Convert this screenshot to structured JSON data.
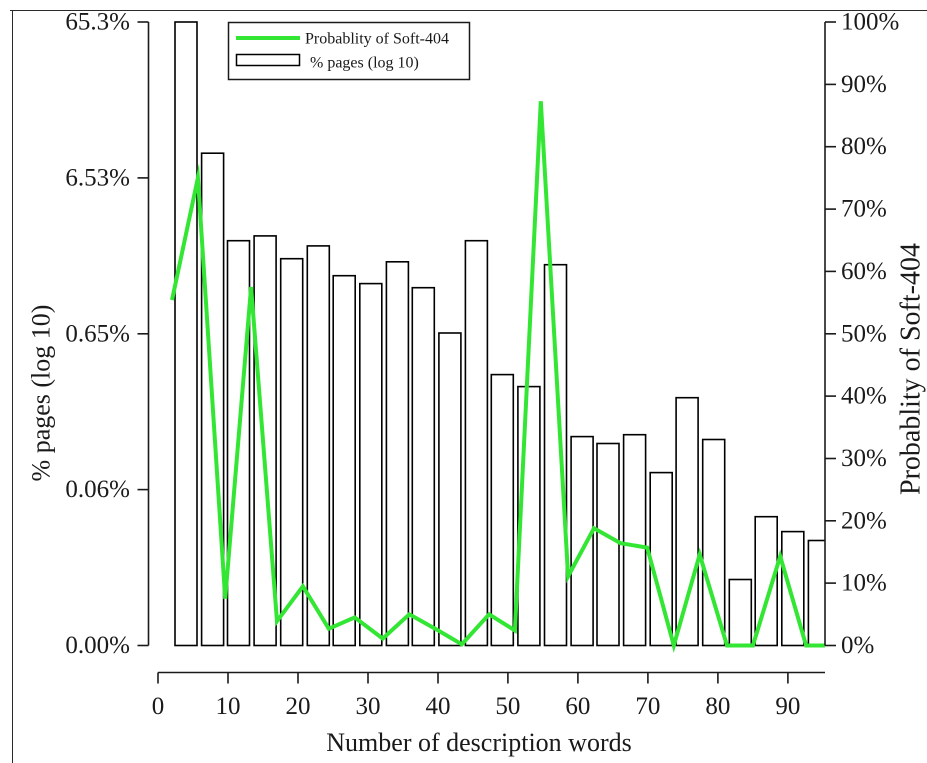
{
  "chart_data": {
    "type": "bar",
    "title": "",
    "xlabel": "Number of description words",
    "ylabel": "% pages (log 10)",
    "y2label": "Probablity of Soft-404",
    "xlim": [
      0,
      95.3
    ],
    "xticks": [
      0,
      10,
      20,
      30,
      40,
      50,
      60,
      70,
      80,
      90
    ],
    "xtick_labels": [
      "0",
      "10",
      "20",
      "30",
      "40",
      "50",
      "60",
      "70",
      "80",
      "90"
    ],
    "yscale": "log",
    "ylim": [
      0.00653,
      65.3
    ],
    "yticks": [
      0.00653,
      0.0653,
      0.653,
      6.53,
      65.3
    ],
    "ytick_labels": [
      "0.00%",
      "0.06%",
      "0.65%",
      "6.53%",
      "65.3%"
    ],
    "y2scale": "linear",
    "y2lim": [
      0,
      100
    ],
    "y2ticks": [
      0,
      10,
      20,
      30,
      40,
      50,
      60,
      70,
      80,
      90,
      100
    ],
    "y2tick_labels": [
      "0%",
      "10%",
      "20%",
      "30%",
      "40%",
      "50%",
      "60%",
      "70%",
      "80%",
      "90%",
      "100%"
    ],
    "grid": false,
    "legend_position": "top-left",
    "series": [
      {
        "name": "Probablity of Soft-404",
        "type": "line",
        "axis": "right",
        "color": "#33e633",
        "x": [
          2.0,
          5.7,
          9.6,
          13.3,
          17.0,
          20.7,
          24.4,
          28.1,
          32.1,
          35.9,
          39.6,
          43.4,
          47.3,
          51.0,
          54.7,
          58.6,
          62.3,
          66.1,
          69.9,
          73.7,
          77.4,
          81.3,
          85.0,
          88.9,
          92.6,
          95.3
        ],
        "y": [
          55.4,
          75.0,
          7.5,
          57.5,
          3.9,
          9.5,
          2.7,
          4.5,
          1.1,
          5.0,
          2.7,
          0.2,
          5.0,
          2.4,
          87.3,
          11.1,
          18.8,
          16.4,
          15.7,
          0.0,
          14.6,
          0.0,
          0.0,
          14.3,
          0.0,
          0.0
        ]
      },
      {
        "name": "% pages (log 10)",
        "type": "bar",
        "axis": "left",
        "color": "#ffffff",
        "edge_color": "#000000",
        "x": [
          4.0,
          7.8,
          11.5,
          15.3,
          19.1,
          22.9,
          26.6,
          30.4,
          34.2,
          37.9,
          41.7,
          45.5,
          49.2,
          53.0,
          56.8,
          60.6,
          64.3,
          68.1,
          71.9,
          75.6,
          79.4,
          83.2,
          86.9,
          90.7,
          94.5
        ],
        "values": [
          65.3,
          9.4,
          2.58,
          2.77,
          1.98,
          2.39,
          1.54,
          1.37,
          1.89,
          1.29,
          0.66,
          2.58,
          0.357,
          0.299,
          1.81,
          0.143,
          0.129,
          0.147,
          0.084,
          0.254,
          0.137,
          0.0173,
          0.0438,
          0.0351,
          0.0308
        ]
      }
    ]
  }
}
